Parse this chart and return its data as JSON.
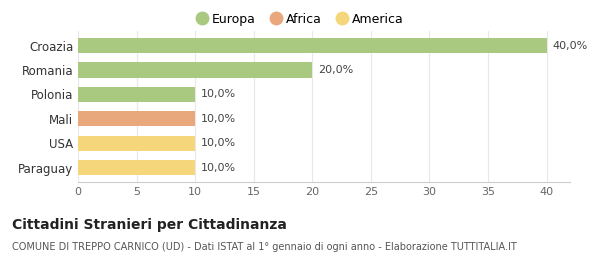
{
  "categories": [
    "Croazia",
    "Romania",
    "Polonia",
    "Mali",
    "USA",
    "Paraguay"
  ],
  "values": [
    40.0,
    20.0,
    10.0,
    10.0,
    10.0,
    10.0
  ],
  "colors": [
    "#a8c97f",
    "#a8c97f",
    "#a8c97f",
    "#e8a87c",
    "#f5d67a",
    "#f5d67a"
  ],
  "bar_labels": [
    "40,0%",
    "20,0%",
    "10,0%",
    "10,0%",
    "10,0%",
    "10,0%"
  ],
  "legend": [
    {
      "label": "Europa",
      "color": "#a8c97f"
    },
    {
      "label": "Africa",
      "color": "#e8a87c"
    },
    {
      "label": "America",
      "color": "#f5d67a"
    }
  ],
  "xlim": [
    0,
    42
  ],
  "xticks": [
    0,
    5,
    10,
    15,
    20,
    25,
    30,
    35,
    40
  ],
  "title": "Cittadini Stranieri per Cittadinanza",
  "subtitle": "COMUNE DI TREPPO CARNICO (UD) - Dati ISTAT al 1° gennaio di ogni anno - Elaborazione TUTTITALIA.IT",
  "title_fontsize": 10,
  "subtitle_fontsize": 7,
  "background_color": "#ffffff",
  "grid_color": "#e8e8e8",
  "bar_height": 0.62
}
